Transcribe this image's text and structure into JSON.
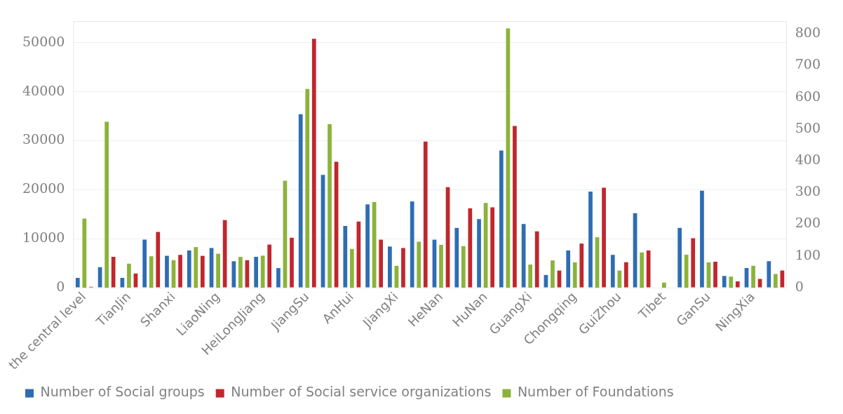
{
  "chart_data": {
    "type": "bar",
    "categories": [
      "the central level",
      null,
      "TianJin",
      null,
      "Shanxi",
      null,
      "LiaoNing",
      null,
      "HeiLongJiang",
      null,
      "JiangSu",
      null,
      "AnHui",
      null,
      "JiangXi",
      null,
      "HeNan",
      null,
      "HuNan",
      null,
      "GuangXi",
      null,
      "Chongqing",
      null,
      "GuiZhou",
      null,
      "Tibet",
      null,
      "GanSu",
      null,
      "NingXia",
      null
    ],
    "series": [
      {
        "name": "Number of Social groups",
        "color": "#2e6db4",
        "values": [
          2000,
          4200,
          2000,
          9800,
          6500,
          7600,
          8100,
          5400,
          6300,
          4000,
          35400,
          23000,
          12600,
          17000,
          8400,
          17600,
          9800,
          12200,
          14000,
          28000,
          13000,
          2600,
          7600,
          19600,
          6700,
          15200,
          null,
          12200,
          19800,
          2400,
          4000,
          5400
        ]
      },
      {
        "name": "Number of Social service organizations",
        "color": "#c0272d",
        "values": [
          200,
          6300,
          2900,
          11400,
          6700,
          6500,
          13800,
          5600,
          8800,
          10200,
          50800,
          25700,
          13500,
          9800,
          8100,
          29800,
          20500,
          16200,
          16400,
          33000,
          11500,
          3500,
          9000,
          20400,
          5200,
          7600,
          null,
          10100,
          5300,
          1300,
          1800,
          3500
        ]
      },
      {
        "name": "Number of Foundations",
        "color": "#8bb33a",
        "axis": "y2",
        "values": [
          218,
          523,
          76,
          99,
          87,
          128,
          107,
          97,
          101,
          337,
          626,
          515,
          122,
          270,
          69,
          145,
          135,
          131,
          267,
          817,
          73,
          86,
          80,
          159,
          54,
          111,
          16,
          104,
          80,
          35,
          69,
          43
        ]
      }
    ],
    "ylim": [
      0,
      54400
    ],
    "yticks": [
      0,
      10000,
      20000,
      30000,
      40000,
      50000
    ],
    "y2lim": [
      0,
      840
    ],
    "y2ticks": [
      0,
      100,
      200,
      300,
      400,
      500,
      600,
      700,
      800
    ],
    "grid": "y",
    "legend": "bottom"
  }
}
